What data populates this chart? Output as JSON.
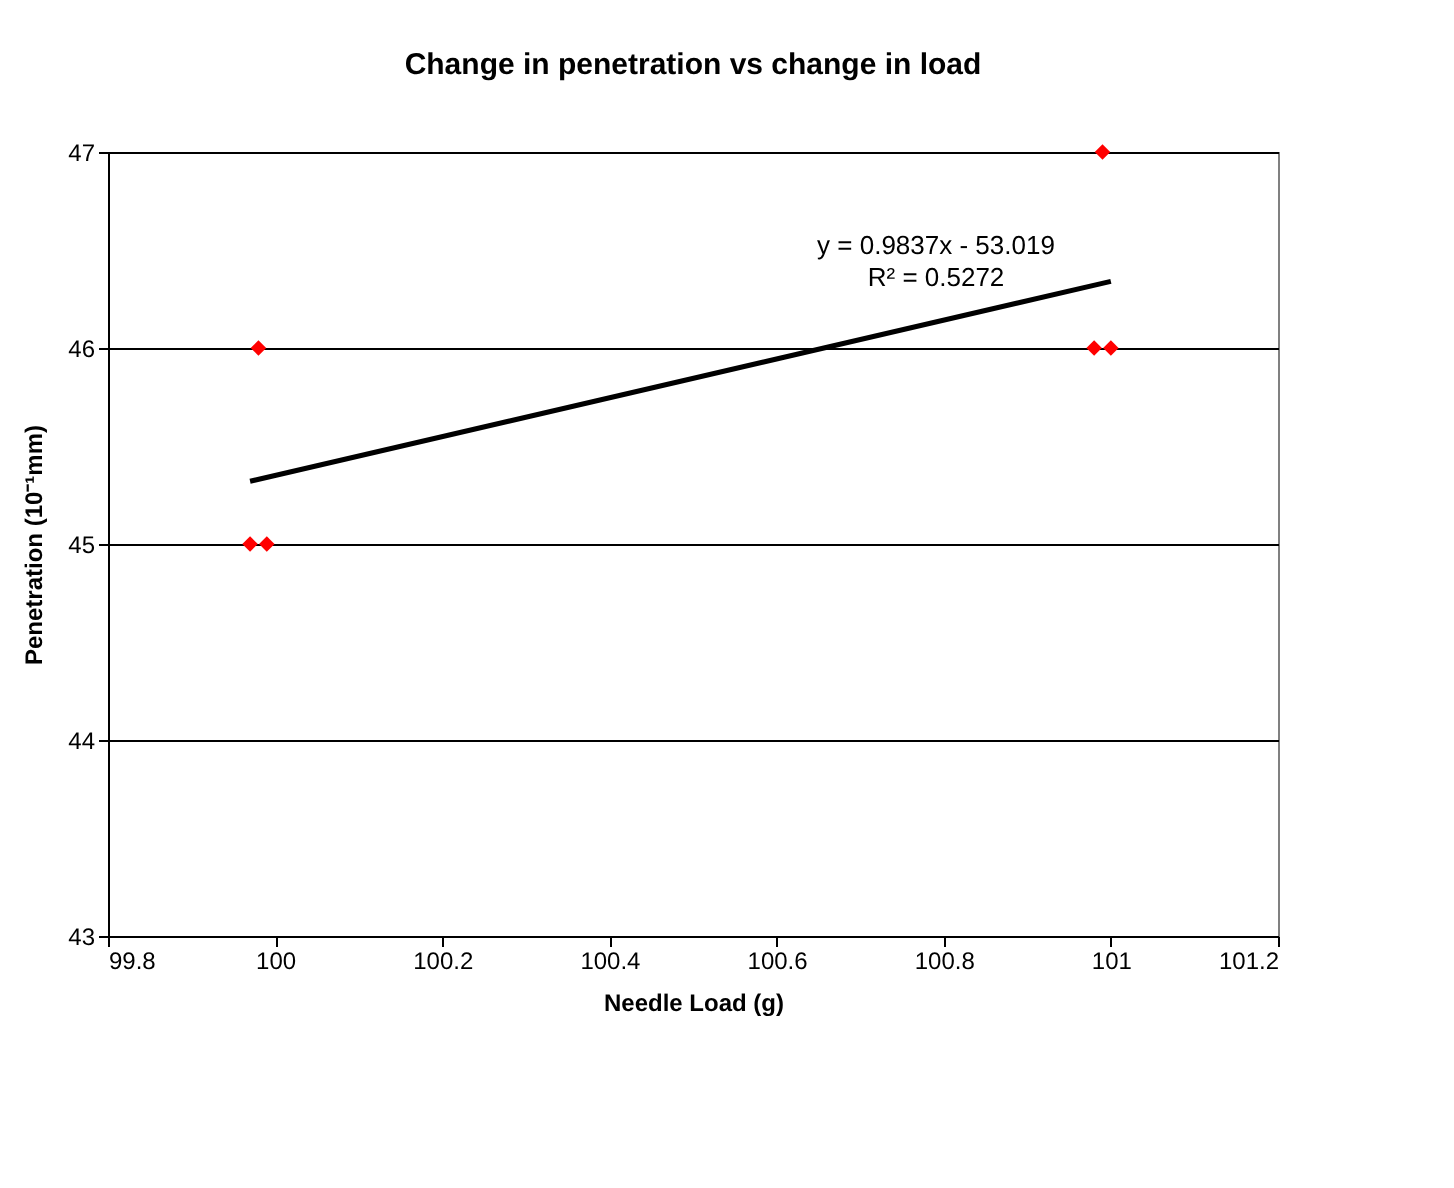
{
  "chart_data": {
    "type": "scatter",
    "title": "Change in penetration vs change in load",
    "xlabel": "Needle Load (g)",
    "ylabel": "Penetration  (10⁻¹mm)",
    "series": [
      {
        "color": "#ff0000",
        "marker": "diamond",
        "x": [
          99.98,
          99.97,
          99.99,
          100.99,
          100.98,
          101.0
        ],
        "values": [
          46,
          45,
          45,
          47,
          46,
          46
        ]
      },
      {
        "type": "line",
        "color": "#000000",
        "marker": "none",
        "line_style": "solid",
        "x": [
          99.97,
          101.0
        ],
        "values": [
          45.32,
          46.34
        ]
      }
    ],
    "annotations": [
      "y = 0.9837x  - 53.019",
      "R² = 0.5272"
    ],
    "xlim": [
      99.8,
      101.2
    ],
    "xticks": [
      99.8,
      100,
      100.2,
      100.4,
      100.6,
      100.8,
      101,
      101.2
    ],
    "ylim": [
      43,
      47
    ],
    "yticks": [
      43,
      44,
      45,
      46,
      47
    ],
    "grid": "y"
  }
}
